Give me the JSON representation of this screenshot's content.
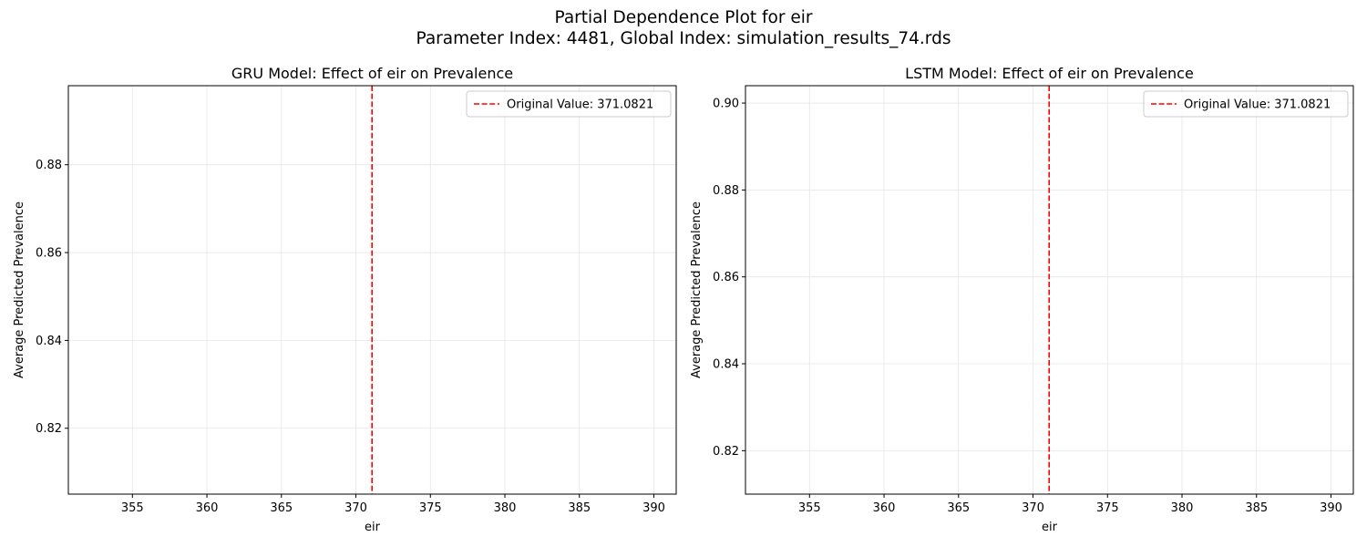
{
  "figure": {
    "title_line1": "Partial Dependence Plot for eir",
    "title_line2": "Parameter Index: 4481, Global Index: simulation_results_74.rds"
  },
  "colors": {
    "reference_line": "#ff0000",
    "grid": "#e6e6e6",
    "axes": "#000000"
  },
  "chart_data": [
    {
      "type": "line",
      "title": "GRU Model: Effect of eir on Prevalence",
      "xlabel": "eir",
      "ylabel": "Average Predicted Prevalence",
      "xlim": [
        350.7,
        391.5
      ],
      "ylim": [
        0.805,
        0.898
      ],
      "xticks": [
        355,
        360,
        365,
        370,
        375,
        380,
        385,
        390
      ],
      "yticks": [
        0.82,
        0.84,
        0.86,
        0.88
      ],
      "ytick_labels": [
        "0.82",
        "0.84",
        "0.86",
        "0.88"
      ],
      "grid": true,
      "series": [],
      "reference_line": {
        "x": 371.0821,
        "label": "Original Value: 371.0821",
        "style": "dashed"
      },
      "legend_position": "top-right"
    },
    {
      "type": "line",
      "title": "LSTM Model: Effect of eir on Prevalence",
      "xlabel": "eir",
      "ylabel": "Average Predicted Prevalence",
      "xlim": [
        350.7,
        391.5
      ],
      "ylim": [
        0.81,
        0.904
      ],
      "xticks": [
        355,
        360,
        365,
        370,
        375,
        380,
        385,
        390
      ],
      "yticks": [
        0.82,
        0.84,
        0.86,
        0.88,
        0.9
      ],
      "ytick_labels": [
        "0.82",
        "0.84",
        "0.86",
        "0.88",
        "0.90"
      ],
      "grid": true,
      "series": [],
      "reference_line": {
        "x": 371.0821,
        "label": "Original Value: 371.0821",
        "style": "dashed"
      },
      "legend_position": "top-right"
    }
  ]
}
